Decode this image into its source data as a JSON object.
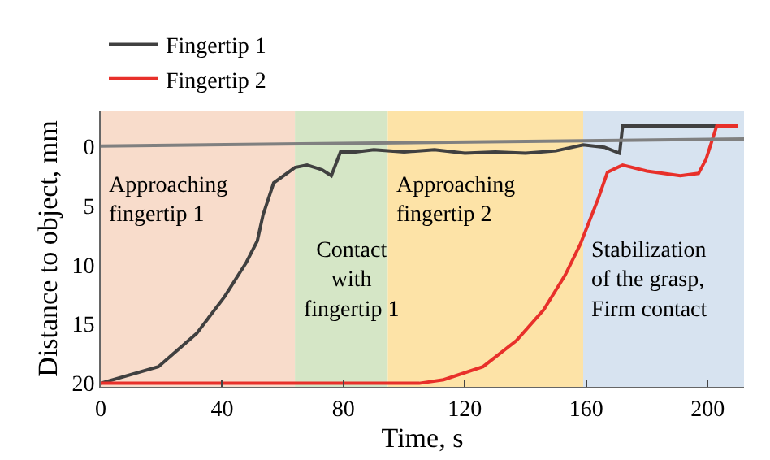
{
  "chart_data": {
    "type": "line",
    "xlabel": "Time, s",
    "ylabel": "Distance to object, mm",
    "xlim": [
      0,
      212
    ],
    "ylim": [
      20.3,
      -3
    ],
    "xticks": [
      0,
      40,
      80,
      120,
      160,
      200
    ],
    "yticks": [
      0,
      5,
      10,
      15,
      20
    ],
    "grid": false,
    "legend": "top left",
    "line_style": "solid",
    "marker": "none",
    "series": [
      {
        "name": "Fingertip 1",
        "color": "#404040",
        "x": [
          0,
          19,
          31.6,
          40.8,
          48,
          51.6,
          53.5,
          57,
          64,
          68,
          73,
          76,
          79,
          84,
          90,
          100,
          110,
          120,
          130,
          140,
          150,
          159,
          166,
          171,
          172,
          203
        ],
        "values": [
          20,
          18.6,
          15.8,
          12.7,
          9.8,
          8,
          5.8,
          3.1,
          1.8,
          1.6,
          2,
          2.5,
          0.5,
          0.5,
          0.3,
          0.5,
          0.3,
          0.6,
          0.5,
          0.6,
          0.4,
          -0.1,
          0.1,
          0.6,
          -1.7,
          -1.7
        ]
      },
      {
        "name": "Fingertip 2",
        "color": "#e8302a",
        "x": [
          0,
          105,
          113,
          126,
          137,
          146,
          153,
          158,
          164,
          167,
          172,
          180,
          191,
          197,
          199.5,
          203,
          210
        ],
        "values": [
          20,
          20,
          19.7,
          18.6,
          16.4,
          13.8,
          10.9,
          8.3,
          4.4,
          2.2,
          1.6,
          2.1,
          2.5,
          2.3,
          1.1,
          -1.7,
          -1.7
        ]
      },
      {
        "color": "#808080",
        "x": [
          0,
          212
        ],
        "values": [
          0,
          -0.6
        ]
      }
    ],
    "bands": [
      {
        "axis": "x",
        "from": 0,
        "to": 64,
        "label": "Approaching\nfingertip 1",
        "color": "#f8dccb"
      },
      {
        "axis": "x",
        "from": 64,
        "to": 94.6,
        "label": "Contact\nwith\nfingertip 1",
        "color": "#d5e6c6"
      },
      {
        "axis": "x",
        "from": 94.6,
        "to": 159,
        "label": "Approaching\nfingertip 2",
        "color": "#fde3a7"
      },
      {
        "axis": "x",
        "from": 159,
        "to": 212,
        "label": "Stabilization\nof the grasp,\nFirm contact",
        "color": "#d7e3f0"
      }
    ]
  }
}
